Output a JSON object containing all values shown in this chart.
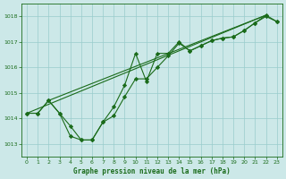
{
  "title": "Graphe pression niveau de la mer (hPa)",
  "background_color": "#cce8e8",
  "grid_color": "#99cccc",
  "line_color": "#1a6b1a",
  "xlim": [
    -0.5,
    23.5
  ],
  "ylim": [
    1012.5,
    1018.5
  ],
  "yticks": [
    1013,
    1014,
    1015,
    1016,
    1017,
    1018
  ],
  "xticks": [
    0,
    1,
    2,
    3,
    4,
    5,
    6,
    7,
    8,
    9,
    10,
    11,
    12,
    13,
    14,
    15,
    16,
    17,
    18,
    19,
    20,
    21,
    22,
    23
  ],
  "series": [
    {
      "x": [
        0,
        1,
        2,
        3,
        4,
        5,
        6,
        7,
        8,
        9,
        10,
        11,
        12,
        13,
        14,
        15,
        16,
        17,
        18,
        19,
        20,
        21,
        22,
        23
      ],
      "y": [
        1014.2,
        1014.2,
        1014.7,
        1014.2,
        1013.7,
        1013.15,
        1013.15,
        1013.85,
        1014.1,
        1014.85,
        1015.55,
        1015.55,
        1016.0,
        1016.45,
        1016.95,
        1016.65,
        1016.85,
        1017.05,
        1017.15,
        1017.2,
        1017.45,
        1017.75,
        1018.0,
        1017.8
      ],
      "marker": true
    },
    {
      "x": [
        0,
        22
      ],
      "y": [
        1014.2,
        1018.05
      ],
      "marker": false
    },
    {
      "x": [
        2,
        22
      ],
      "y": [
        1014.7,
        1018.05
      ],
      "marker": false
    },
    {
      "x": [
        0,
        1,
        2,
        3,
        4,
        5,
        6,
        7,
        8,
        9,
        10,
        11,
        12,
        13,
        14,
        15,
        16,
        17,
        18,
        19,
        20,
        21,
        22,
        23
      ],
      "y": [
        1014.2,
        1014.2,
        1014.7,
        1014.2,
        1013.3,
        1013.15,
        1013.15,
        1013.85,
        1014.45,
        1015.3,
        1016.55,
        1015.45,
        1016.55,
        1016.55,
        1017.0,
        1016.65,
        1016.85,
        1017.05,
        1017.15,
        1017.2,
        1017.45,
        1017.75,
        1018.05,
        1017.8
      ],
      "marker": true
    }
  ]
}
